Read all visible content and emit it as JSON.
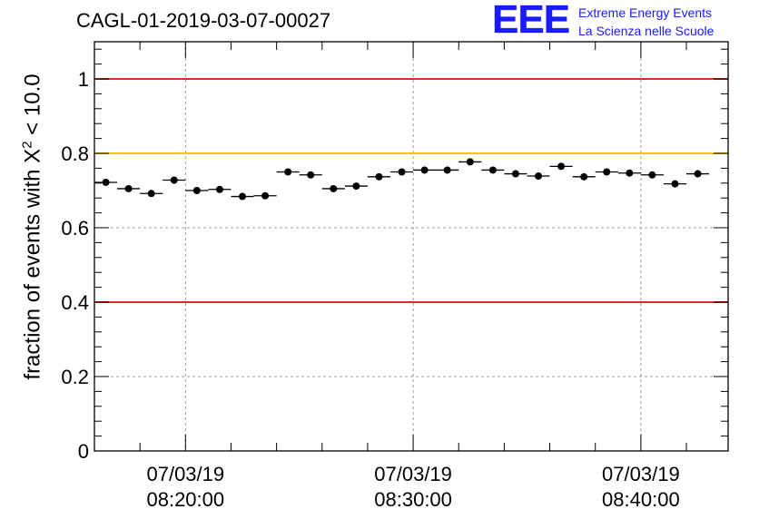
{
  "run_title": "CAGL-01-2019-03-07-00027",
  "logo": {
    "mark": "EEE",
    "line1": "Extreme Energy Events",
    "line2": "La Scienza nelle Scuole",
    "color": "#1a1aff"
  },
  "ylabel": {
    "prefix": "fraction of events with ",
    "symbol": "X",
    "exponent": "2",
    "suffix": " < 10.0"
  },
  "chart_data": {
    "type": "scatter",
    "ylim": [
      0,
      1.1
    ],
    "xlim": [
      "08:16:00",
      "08:43:50"
    ],
    "grid": true,
    "yticks": [
      {
        "v": 0,
        "label": "0"
      },
      {
        "v": 0.2,
        "label": "0.2"
      },
      {
        "v": 0.4,
        "label": "0.4"
      },
      {
        "v": 0.6,
        "label": "0.6"
      },
      {
        "v": 0.8,
        "label": "0.8"
      },
      {
        "v": 1,
        "label": "1"
      }
    ],
    "xticks": [
      {
        "t": "08:20:00",
        "date": "07/03/19",
        "time": "08:20:00"
      },
      {
        "t": "08:30:00",
        "date": "07/03/19",
        "time": "08:30:00"
      },
      {
        "t": "08:40:00",
        "date": "07/03/19",
        "time": "08:40:00"
      }
    ],
    "reference_lines": [
      {
        "y": 1.0,
        "color": "#e8251f"
      },
      {
        "y": 0.8,
        "color": "#ffc20e"
      },
      {
        "y": 0.4,
        "color": "#e8251f"
      }
    ],
    "bin_width_s": 60,
    "points": [
      {
        "x": "08:16:30",
        "y": 0.722
      },
      {
        "x": "08:17:30",
        "y": 0.705
      },
      {
        "x": "08:18:30",
        "y": 0.692
      },
      {
        "x": "08:19:30",
        "y": 0.728
      },
      {
        "x": "08:20:30",
        "y": 0.7
      },
      {
        "x": "08:21:30",
        "y": 0.703
      },
      {
        "x": "08:22:30",
        "y": 0.684
      },
      {
        "x": "08:23:30",
        "y": 0.686
      },
      {
        "x": "08:24:30",
        "y": 0.75
      },
      {
        "x": "08:25:30",
        "y": 0.742
      },
      {
        "x": "08:26:30",
        "y": 0.705
      },
      {
        "x": "08:27:30",
        "y": 0.712
      },
      {
        "x": "08:28:30",
        "y": 0.737
      },
      {
        "x": "08:29:30",
        "y": 0.75
      },
      {
        "x": "08:30:30",
        "y": 0.755
      },
      {
        "x": "08:31:30",
        "y": 0.755
      },
      {
        "x": "08:32:30",
        "y": 0.777
      },
      {
        "x": "08:33:30",
        "y": 0.755
      },
      {
        "x": "08:34:30",
        "y": 0.745
      },
      {
        "x": "08:35:30",
        "y": 0.739
      },
      {
        "x": "08:36:30",
        "y": 0.765
      },
      {
        "x": "08:37:30",
        "y": 0.737
      },
      {
        "x": "08:38:30",
        "y": 0.75
      },
      {
        "x": "08:39:30",
        "y": 0.747
      },
      {
        "x": "08:40:30",
        "y": 0.742
      },
      {
        "x": "08:41:30",
        "y": 0.718
      },
      {
        "x": "08:42:30",
        "y": 0.745
      }
    ]
  }
}
